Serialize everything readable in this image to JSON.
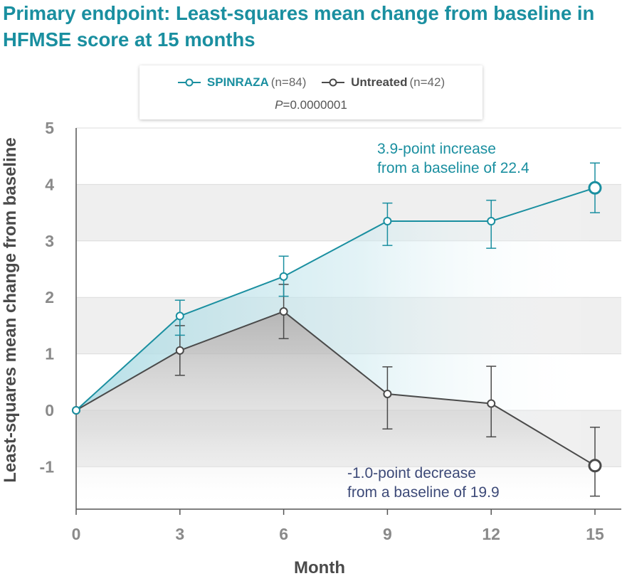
{
  "chart_data": {
    "type": "line",
    "title": "Primary endpoint: Least-squares mean change from baseline in HFMSE score at 15 months",
    "xlabel": "Month",
    "ylabel": "Least-squares mean change from baseline",
    "x": [
      0,
      3,
      6,
      9,
      12,
      15
    ],
    "xticks": [
      "0",
      "3",
      "6",
      "9",
      "12",
      "15"
    ],
    "yticks": [
      "5",
      "4",
      "3",
      "2",
      "1",
      "0",
      "-1"
    ],
    "ylim": [
      -1.7,
      5
    ],
    "series": [
      {
        "name": "SPINRAZA",
        "n_label": "(n=84)",
        "color": "#1a8fa0",
        "values": [
          0,
          1.67,
          2.37,
          3.35,
          3.35,
          3.94
        ],
        "err_low": [
          0,
          1.33,
          2.02,
          2.92,
          2.87,
          3.5
        ],
        "err_high": [
          0,
          1.95,
          2.73,
          3.67,
          3.72,
          4.38
        ]
      },
      {
        "name": "Untreated",
        "n_label": "(n=42)",
        "color": "#4a4a4a",
        "values": [
          0,
          1.06,
          1.75,
          0.29,
          0.12,
          -0.98
        ],
        "err_low": [
          0,
          0.62,
          1.27,
          -0.33,
          -0.47,
          -1.52
        ],
        "err_high": [
          0,
          1.5,
          2.23,
          0.77,
          0.78,
          -0.3
        ]
      }
    ],
    "p_prefix": "P",
    "p_value": "=0.0000001",
    "annotations": [
      {
        "line1": "3.9-point increase",
        "line2": "from a baseline of 22.4"
      },
      {
        "line1": "-1.0-point decrease",
        "line2": "from a baseline of 19.9"
      }
    ],
    "legend_position": "top-center",
    "grid": true
  }
}
